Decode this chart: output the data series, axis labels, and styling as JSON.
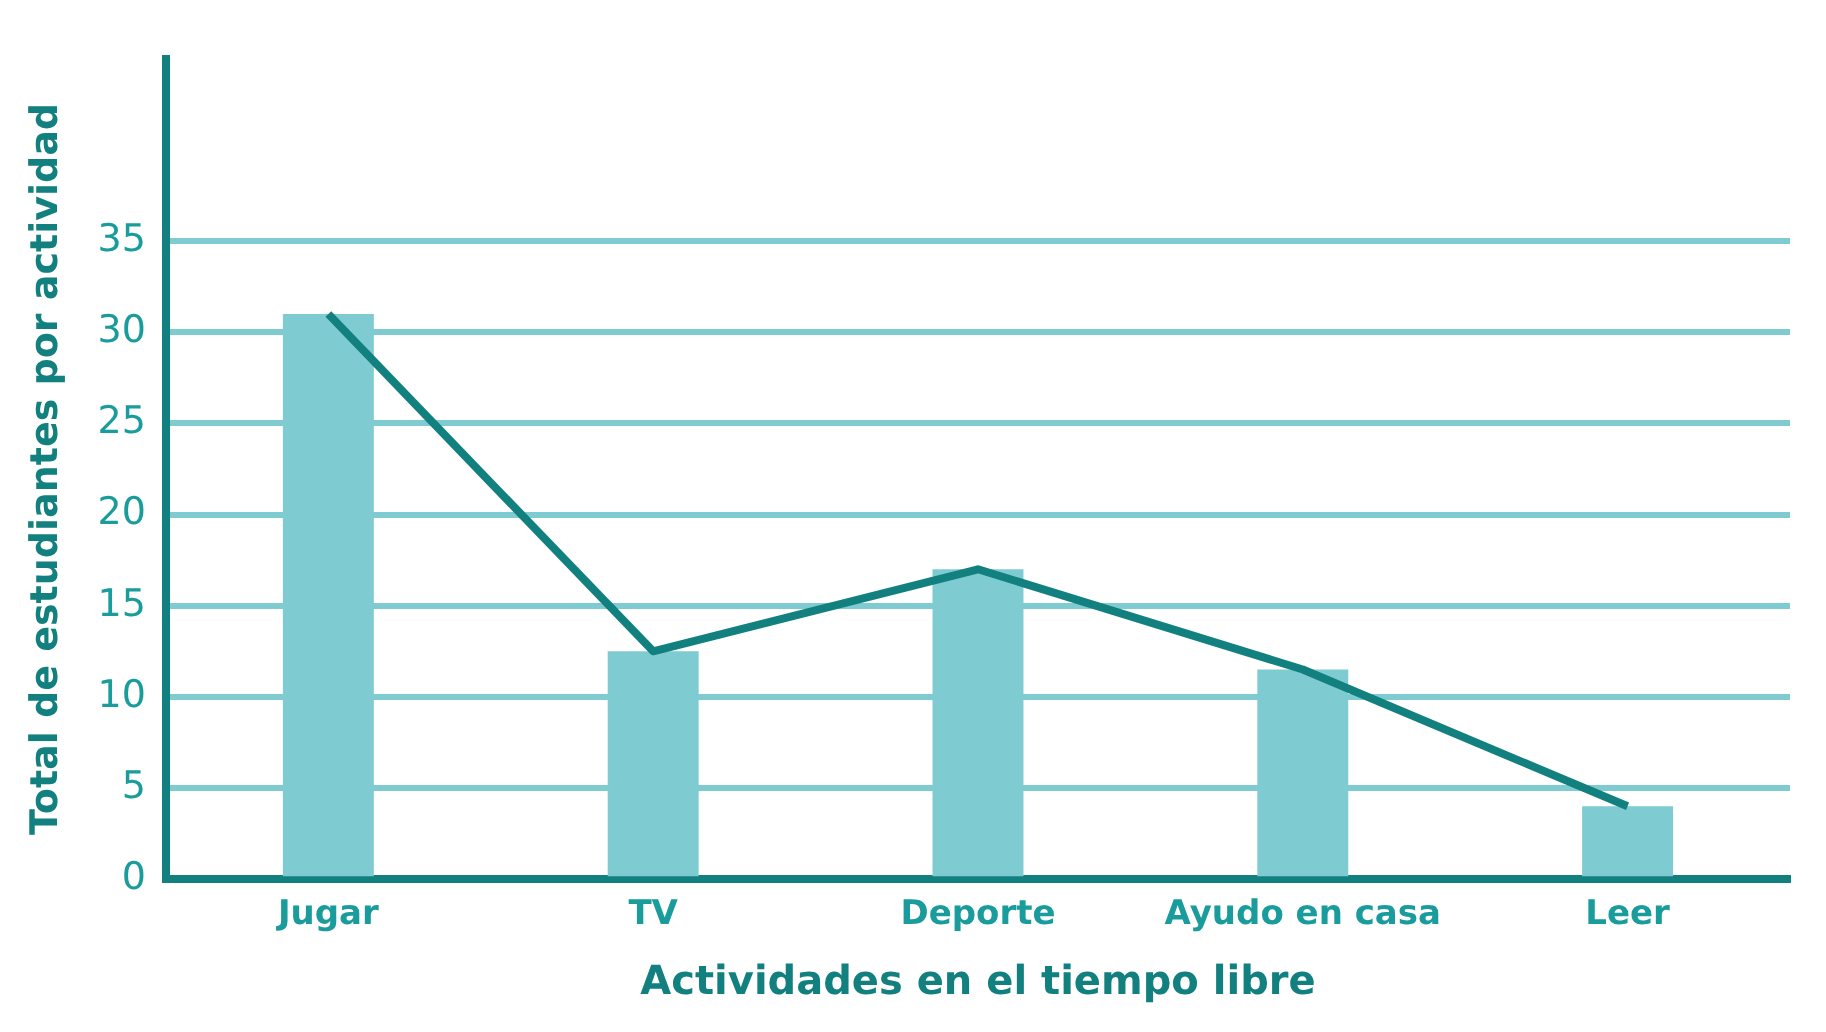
{
  "chart_data": {
    "type": "bar",
    "xlabel": "Actividades en el tiempo libre",
    "ylabel": "Total de estudiantes por actividad",
    "categories": [
      "Jugar",
      "TV",
      "Deporte",
      "Ayudo en casa",
      "Leer"
    ],
    "series": [
      {
        "color": "#7ecbd1",
        "values": [
          31,
          12.5,
          17,
          11.5,
          4
        ]
      },
      {
        "type": "line",
        "color": "#138080",
        "values": [
          31,
          12.5,
          17,
          11.5,
          4
        ]
      }
    ],
    "ylim": [
      0,
      45
    ],
    "yticks": [
      0,
      5,
      10,
      15,
      20,
      25,
      30,
      35
    ],
    "grid": "y",
    "legend": false,
    "marker": "none"
  }
}
